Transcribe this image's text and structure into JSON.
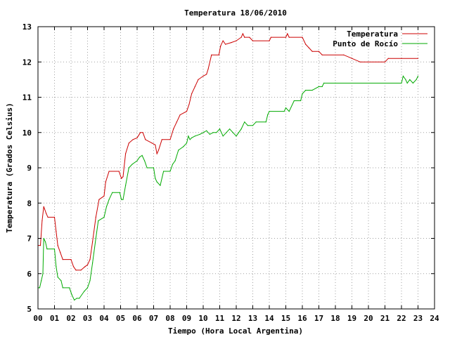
{
  "chart_data": {
    "type": "line",
    "title": "Temperatura 18/06/2010",
    "xlabel": "Tiempo (Hora Local Argentina)",
    "ylabel": "Temperatura (Grados Celsius)",
    "xlim": [
      0,
      24
    ],
    "ylim": [
      5,
      13
    ],
    "x_ticks": [
      0,
      1,
      2,
      3,
      4,
      5,
      6,
      7,
      8,
      9,
      10,
      11,
      12,
      13,
      14,
      15,
      16,
      17,
      18,
      19,
      20,
      21,
      22,
      23,
      24
    ],
    "x_tick_labels": [
      "00",
      "01",
      "02",
      "03",
      "04",
      "05",
      "06",
      "07",
      "08",
      "09",
      "10",
      "11",
      "12",
      "13",
      "14",
      "15",
      "16",
      "17",
      "18",
      "19",
      "20",
      "21",
      "22",
      "23",
      "24"
    ],
    "y_ticks": [
      5,
      6,
      7,
      8,
      9,
      10,
      11,
      12,
      13
    ],
    "y_tick_labels": [
      "5",
      "6",
      "7",
      "8",
      "9",
      "10",
      "11",
      "12",
      "13"
    ],
    "grid": true,
    "legend_position": "top-right",
    "series": [
      {
        "name": "Temperatura",
        "color": "#cc0000",
        "points": [
          [
            0,
            6.8
          ],
          [
            0.15,
            6.8
          ],
          [
            0.25,
            7.5
          ],
          [
            0.35,
            7.9
          ],
          [
            0.5,
            7.7
          ],
          [
            0.6,
            7.6
          ],
          [
            1.0,
            7.6
          ],
          [
            1.1,
            7.2
          ],
          [
            1.2,
            6.8
          ],
          [
            1.35,
            6.6
          ],
          [
            1.5,
            6.4
          ],
          [
            2.0,
            6.4
          ],
          [
            2.15,
            6.2
          ],
          [
            2.3,
            6.1
          ],
          [
            2.6,
            6.1
          ],
          [
            2.85,
            6.2
          ],
          [
            3.0,
            6.25
          ],
          [
            3.15,
            6.4
          ],
          [
            3.3,
            6.9
          ],
          [
            3.5,
            7.6
          ],
          [
            3.7,
            8.1
          ],
          [
            4.0,
            8.2
          ],
          [
            4.1,
            8.6
          ],
          [
            4.3,
            8.9
          ],
          [
            4.9,
            8.9
          ],
          [
            5.05,
            8.7
          ],
          [
            5.15,
            8.75
          ],
          [
            5.3,
            9.4
          ],
          [
            5.5,
            9.7
          ],
          [
            5.75,
            9.8
          ],
          [
            6.0,
            9.85
          ],
          [
            6.2,
            10.0
          ],
          [
            6.35,
            10.0
          ],
          [
            6.5,
            9.8
          ],
          [
            6.9,
            9.7
          ],
          [
            7.1,
            9.65
          ],
          [
            7.2,
            9.4
          ],
          [
            7.3,
            9.5
          ],
          [
            7.5,
            9.8
          ],
          [
            8.0,
            9.8
          ],
          [
            8.2,
            10.1
          ],
          [
            8.4,
            10.3
          ],
          [
            8.6,
            10.5
          ],
          [
            9.0,
            10.6
          ],
          [
            9.15,
            10.8
          ],
          [
            9.3,
            11.1
          ],
          [
            9.5,
            11.3
          ],
          [
            9.7,
            11.5
          ],
          [
            10.0,
            11.6
          ],
          [
            10.2,
            11.65
          ],
          [
            10.3,
            11.8
          ],
          [
            10.5,
            12.2
          ],
          [
            10.95,
            12.2
          ],
          [
            11.05,
            12.45
          ],
          [
            11.2,
            12.6
          ],
          [
            11.35,
            12.5
          ],
          [
            11.7,
            12.55
          ],
          [
            12.0,
            12.6
          ],
          [
            12.3,
            12.7
          ],
          [
            12.4,
            12.8
          ],
          [
            12.5,
            12.7
          ],
          [
            12.8,
            12.7
          ],
          [
            13.0,
            12.6
          ],
          [
            14.0,
            12.6
          ],
          [
            14.1,
            12.7
          ],
          [
            15.0,
            12.7
          ],
          [
            15.1,
            12.8
          ],
          [
            15.2,
            12.7
          ],
          [
            16.0,
            12.7
          ],
          [
            16.2,
            12.5
          ],
          [
            16.4,
            12.4
          ],
          [
            16.6,
            12.3
          ],
          [
            17.0,
            12.3
          ],
          [
            17.2,
            12.2
          ],
          [
            18.5,
            12.2
          ],
          [
            19.0,
            12.1
          ],
          [
            19.5,
            12.0
          ],
          [
            20.0,
            12.0
          ],
          [
            21.0,
            12.0
          ],
          [
            21.2,
            12.1
          ],
          [
            22.0,
            12.1
          ],
          [
            23.0,
            12.1
          ]
        ]
      },
      {
        "name": "Punto de Rocío",
        "color": "#00aa00",
        "points": [
          [
            0,
            5.6
          ],
          [
            0.1,
            5.6
          ],
          [
            0.2,
            5.8
          ],
          [
            0.3,
            6.0
          ],
          [
            0.35,
            7.0
          ],
          [
            0.45,
            6.9
          ],
          [
            0.55,
            6.7
          ],
          [
            1.0,
            6.7
          ],
          [
            1.1,
            6.2
          ],
          [
            1.2,
            5.9
          ],
          [
            1.4,
            5.8
          ],
          [
            1.5,
            5.6
          ],
          [
            1.9,
            5.6
          ],
          [
            2.05,
            5.4
          ],
          [
            2.2,
            5.25
          ],
          [
            2.35,
            5.3
          ],
          [
            2.5,
            5.3
          ],
          [
            2.8,
            5.5
          ],
          [
            3.0,
            5.6
          ],
          [
            3.15,
            5.8
          ],
          [
            3.3,
            6.3
          ],
          [
            3.5,
            7.0
          ],
          [
            3.65,
            7.5
          ],
          [
            4.0,
            7.6
          ],
          [
            4.15,
            7.9
          ],
          [
            4.3,
            8.1
          ],
          [
            4.5,
            8.3
          ],
          [
            4.95,
            8.3
          ],
          [
            5.05,
            8.1
          ],
          [
            5.15,
            8.1
          ],
          [
            5.3,
            8.5
          ],
          [
            5.5,
            9.0
          ],
          [
            5.7,
            9.1
          ],
          [
            6.0,
            9.2
          ],
          [
            6.15,
            9.3
          ],
          [
            6.3,
            9.35
          ],
          [
            6.45,
            9.2
          ],
          [
            6.6,
            9.0
          ],
          [
            7.0,
            9.0
          ],
          [
            7.1,
            8.7
          ],
          [
            7.2,
            8.6
          ],
          [
            7.4,
            8.5
          ],
          [
            7.6,
            8.9
          ],
          [
            8.0,
            8.9
          ],
          [
            8.15,
            9.1
          ],
          [
            8.3,
            9.2
          ],
          [
            8.5,
            9.5
          ],
          [
            8.8,
            9.6
          ],
          [
            9.0,
            9.7
          ],
          [
            9.1,
            9.9
          ],
          [
            9.2,
            9.8
          ],
          [
            9.3,
            9.85
          ],
          [
            9.5,
            9.9
          ],
          [
            9.8,
            9.95
          ],
          [
            10.0,
            10.0
          ],
          [
            10.2,
            10.05
          ],
          [
            10.4,
            9.95
          ],
          [
            10.6,
            10.0
          ],
          [
            10.8,
            10.0
          ],
          [
            11.0,
            10.1
          ],
          [
            11.2,
            9.9
          ],
          [
            11.4,
            10.0
          ],
          [
            11.6,
            10.1
          ],
          [
            11.8,
            10.0
          ],
          [
            12.0,
            9.9
          ],
          [
            12.3,
            10.1
          ],
          [
            12.5,
            10.3
          ],
          [
            12.7,
            10.2
          ],
          [
            13.0,
            10.2
          ],
          [
            13.2,
            10.3
          ],
          [
            13.8,
            10.3
          ],
          [
            13.9,
            10.5
          ],
          [
            14.0,
            10.6
          ],
          [
            14.9,
            10.6
          ],
          [
            15.0,
            10.7
          ],
          [
            15.2,
            10.6
          ],
          [
            15.5,
            10.9
          ],
          [
            15.9,
            10.9
          ],
          [
            16.0,
            11.1
          ],
          [
            16.2,
            11.2
          ],
          [
            16.4,
            11.2
          ],
          [
            16.6,
            11.2
          ],
          [
            17.0,
            11.3
          ],
          [
            17.2,
            11.3
          ],
          [
            17.3,
            11.4
          ],
          [
            18.0,
            11.4
          ],
          [
            22.0,
            11.4
          ],
          [
            22.1,
            11.6
          ],
          [
            22.25,
            11.5
          ],
          [
            22.35,
            11.4
          ],
          [
            22.5,
            11.5
          ],
          [
            22.7,
            11.4
          ],
          [
            22.9,
            11.5
          ],
          [
            23.0,
            11.6
          ]
        ]
      }
    ]
  }
}
